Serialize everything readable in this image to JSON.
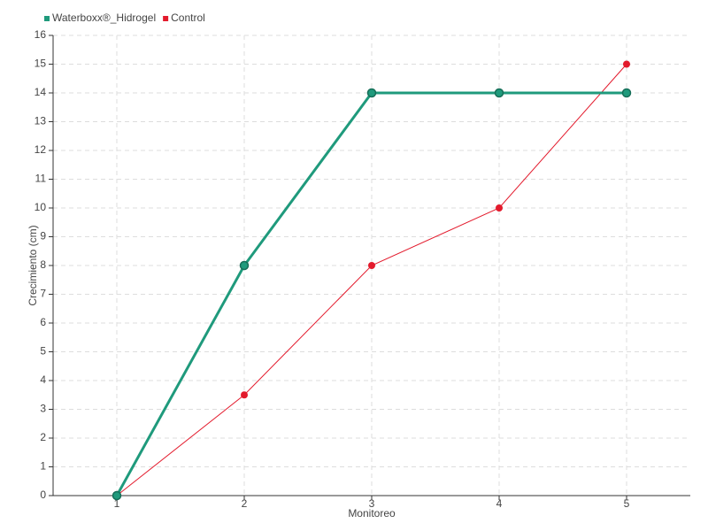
{
  "chart_data": {
    "type": "line",
    "x_label": "Monitoreo",
    "y_label": "Crecimiento (cm)",
    "categories": [
      "1",
      "2",
      "3",
      "4",
      "5"
    ],
    "series": [
      {
        "name": "Waterboxx®_Hidrogel",
        "color": "#1f9a7c",
        "values": [
          0,
          8,
          14,
          14,
          14
        ]
      },
      {
        "name": "Control",
        "color": "#e31a2c",
        "values": [
          0,
          3.5,
          8,
          10,
          15
        ]
      }
    ],
    "ylim": [
      0,
      16
    ],
    "yticks": [
      0,
      1,
      2,
      3,
      4,
      5,
      6,
      7,
      8,
      9,
      10,
      11,
      12,
      13,
      14,
      15,
      16
    ],
    "grid": true
  }
}
